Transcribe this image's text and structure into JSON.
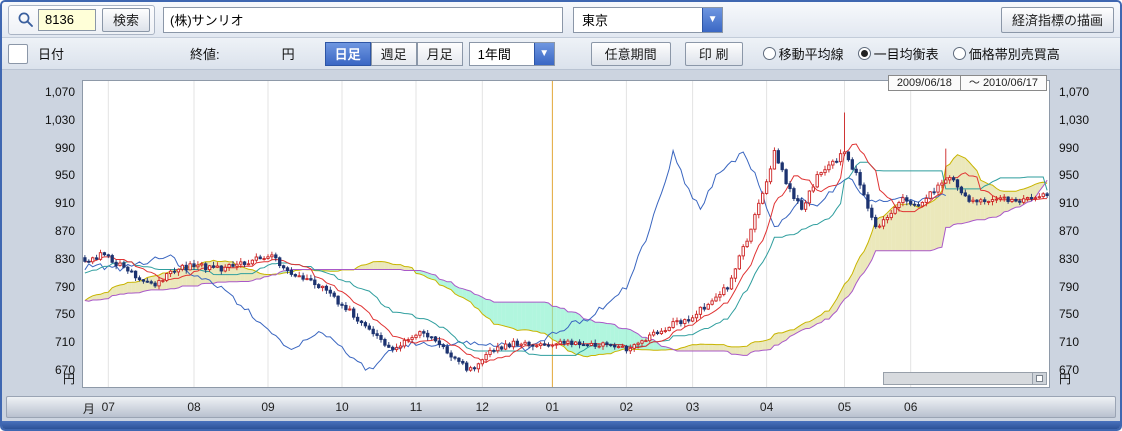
{
  "toolbar": {
    "stock_code": "8136",
    "search_button": "検索",
    "stock_name": "(株)サンリオ",
    "exchange": "東京",
    "indicator_button": "経済指標の描画"
  },
  "controls": {
    "date_label": "日付",
    "close_label": "終値:",
    "yen_label": "円",
    "tabs": {
      "daily": "日足",
      "weekly": "週足",
      "monthly": "月足",
      "active": "daily"
    },
    "period": "1年間",
    "custom_period_button": "任意期間",
    "print_button": "印 刷",
    "radios": {
      "ma": "移動平均線",
      "ichimoku": "一目均衡表",
      "volume_by_price": "価格帯別売買高",
      "selected": "ichimoku"
    }
  },
  "chart_data": {
    "type": "candlestick",
    "overlay": "ichimoku",
    "date_from": "2009/06/18",
    "date_range_separator": "～",
    "date_to": "2010/06/17",
    "y_unit": "円",
    "ylim": [
      670,
      1070
    ],
    "y_ticks": [
      [
        1070,
        "1,070"
      ],
      [
        1030,
        "1,030"
      ],
      [
        990,
        "990"
      ],
      [
        950,
        "950"
      ],
      [
        910,
        "910"
      ],
      [
        870,
        "870"
      ],
      [
        830,
        "830"
      ],
      [
        790,
        "790"
      ],
      [
        750,
        "750"
      ],
      [
        710,
        "710"
      ],
      [
        670,
        "670"
      ]
    ],
    "x_ticks": [
      {
        "label": "月",
        "day": 1,
        "grid": false
      },
      {
        "label": "07",
        "day": 6
      },
      {
        "label": "08",
        "day": 28
      },
      {
        "label": "09",
        "day": 47
      },
      {
        "label": "10",
        "day": 66
      },
      {
        "label": "11",
        "day": 85
      },
      {
        "label": "12",
        "day": 102
      },
      {
        "label": "01",
        "day": 120
      },
      {
        "label": "02",
        "day": 139
      },
      {
        "label": "03",
        "day": 156
      },
      {
        "label": "04",
        "day": 175
      },
      {
        "label": "05",
        "day": 195
      },
      {
        "label": "06",
        "day": 212
      }
    ],
    "days_visible": 248,
    "pre_days": 78,
    "year_line_day": 120,
    "close_keyframes": [
      [
        -78,
        800
      ],
      [
        -60,
        748
      ],
      [
        -35,
        762
      ],
      [
        -15,
        820
      ],
      [
        0,
        830
      ],
      [
        5,
        838
      ],
      [
        10,
        818
      ],
      [
        15,
        800
      ],
      [
        18,
        793
      ],
      [
        22,
        815
      ],
      [
        28,
        822
      ],
      [
        35,
        818
      ],
      [
        41,
        825
      ],
      [
        47,
        838
      ],
      [
        53,
        812
      ],
      [
        58,
        800
      ],
      [
        64,
        775
      ],
      [
        69,
        750
      ],
      [
        74,
        722
      ],
      [
        79,
        698
      ],
      [
        86,
        726
      ],
      [
        91,
        710
      ],
      [
        96,
        680
      ],
      [
        99,
        672
      ],
      [
        105,
        700
      ],
      [
        110,
        710
      ],
      [
        118,
        706
      ],
      [
        126,
        712
      ],
      [
        133,
        708
      ],
      [
        140,
        702
      ],
      [
        145,
        718
      ],
      [
        150,
        735
      ],
      [
        156,
        748
      ],
      [
        160,
        768
      ],
      [
        165,
        790
      ],
      [
        170,
        860
      ],
      [
        175,
        940
      ],
      [
        177,
        985
      ],
      [
        181,
        930
      ],
      [
        184,
        905
      ],
      [
        188,
        950
      ],
      [
        192,
        970
      ],
      [
        195,
        985
      ],
      [
        199,
        940
      ],
      [
        203,
        875
      ],
      [
        206,
        890
      ],
      [
        210,
        915
      ],
      [
        214,
        905
      ],
      [
        218,
        930
      ],
      [
        222,
        950
      ],
      [
        225,
        925
      ],
      [
        229,
        912
      ],
      [
        236,
        918
      ],
      [
        241,
        915
      ],
      [
        247,
        926
      ]
    ],
    "spikes": [
      [
        195,
        1042
      ],
      [
        221,
        990
      ]
    ],
    "colors": {
      "candle_up": "#cc2222",
      "candle_down": "#1d3370",
      "tenkan": "#e03333",
      "kijun": "#2f9e9e",
      "chikou": "#3a66c0",
      "senkou_a": "#c8b400",
      "senkou_b": "#a958c8",
      "cloud_bearish": "#7df0c8",
      "cloud_bullish": "#ded98e",
      "year_line": "#e6ab3e",
      "grid": "#e3e3e3"
    }
  }
}
